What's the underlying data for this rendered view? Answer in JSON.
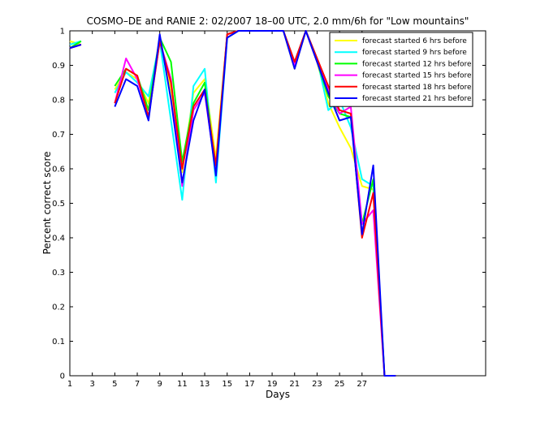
{
  "chart_data": {
    "type": "line",
    "title": "COSMO–DE and RANIE 2: 02/2007 18–00 UTC, 2.0 mm/6h for \"Low mountains\"",
    "xlabel": "Days",
    "ylabel": "Percent correct score",
    "xlim": [
      1,
      38
    ],
    "ylim": [
      0,
      1
    ],
    "xticks": [
      "1",
      "3",
      "5",
      "7",
      "9",
      "11",
      "13",
      "15",
      "17",
      "19",
      "21",
      "23",
      "25",
      "27"
    ],
    "yticks": [
      "0",
      "0.1",
      "0.2",
      "0.3",
      "0.4",
      "0.5",
      "0.6",
      "0.7",
      "0.8",
      "0.9",
      "1"
    ],
    "grid": false,
    "legend_position": "top-right",
    "colors": {
      "forecast started 6 hrs before": "#ffff00",
      "forecast started 9 hrs before": "#00ffff",
      "forecast started 12 hrs before": "#00ff00",
      "forecast started 15 hrs before": "#ff00ff",
      "forecast started 18 hrs before": "#ff0000",
      "forecast started 21 hrs before": "#0000ff"
    },
    "series": [
      {
        "name": "forecast started 6 hrs before",
        "color": "#ffff00",
        "points": [
          [
            1,
            0.97
          ],
          [
            2,
            0.96
          ],
          [
            5,
            0.83
          ],
          [
            6,
            0.88
          ],
          [
            7,
            0.86
          ],
          [
            8,
            0.79
          ],
          [
            9,
            0.98
          ],
          [
            10,
            0.83
          ],
          [
            11,
            0.59
          ],
          [
            12,
            0.82
          ],
          [
            13,
            0.86
          ],
          [
            14,
            0.63
          ],
          [
            15,
            0.99
          ],
          [
            16,
            1.0
          ],
          [
            17,
            1.0
          ],
          [
            18,
            1.0
          ],
          [
            19,
            1.0
          ],
          [
            20,
            1.0
          ],
          [
            21,
            0.89
          ],
          [
            22,
            1.0
          ],
          [
            23,
            0.91
          ],
          [
            24,
            0.79
          ],
          [
            25,
            0.72
          ],
          [
            26,
            0.66
          ],
          [
            27,
            0.55
          ],
          [
            28,
            0.54
          ],
          [
            29,
            0.0
          ],
          [
            30,
            0.0
          ]
        ]
      },
      {
        "name": "forecast started 9 hrs before",
        "color": "#00ffff",
        "points": [
          [
            1,
            0.96
          ],
          [
            2,
            0.97
          ],
          [
            5,
            0.82
          ],
          [
            6,
            0.88
          ],
          [
            7,
            0.85
          ],
          [
            8,
            0.81
          ],
          [
            9,
            0.97
          ],
          [
            10,
            0.74
          ],
          [
            11,
            0.51
          ],
          [
            12,
            0.84
          ],
          [
            13,
            0.89
          ],
          [
            14,
            0.56
          ],
          [
            15,
            0.98
          ],
          [
            16,
            1.0
          ],
          [
            17,
            1.0
          ],
          [
            18,
            1.0
          ],
          [
            19,
            1.0
          ],
          [
            20,
            1.0
          ],
          [
            21,
            0.91
          ],
          [
            22,
            1.0
          ],
          [
            23,
            0.92
          ],
          [
            24,
            0.77
          ],
          [
            25,
            0.8
          ],
          [
            26,
            0.72
          ],
          [
            27,
            0.57
          ],
          [
            28,
            0.55
          ],
          [
            29,
            0.0
          ],
          [
            30,
            0.0
          ]
        ]
      },
      {
        "name": "forecast started 12 hrs before",
        "color": "#00ff00",
        "points": [
          [
            1,
            0.95
          ],
          [
            2,
            0.97
          ],
          [
            5,
            0.84
          ],
          [
            6,
            0.89
          ],
          [
            7,
            0.87
          ],
          [
            8,
            0.77
          ],
          [
            9,
            0.98
          ],
          [
            10,
            0.91
          ],
          [
            11,
            0.62
          ],
          [
            12,
            0.79
          ],
          [
            13,
            0.85
          ],
          [
            14,
            0.6
          ],
          [
            15,
            0.99
          ],
          [
            16,
            1.0
          ],
          [
            17,
            1.0
          ],
          [
            18,
            1.0
          ],
          [
            19,
            1.0
          ],
          [
            20,
            1.0
          ],
          [
            21,
            0.9
          ],
          [
            22,
            1.0
          ],
          [
            23,
            0.91
          ],
          [
            24,
            0.81
          ],
          [
            25,
            0.76
          ],
          [
            26,
            0.75
          ],
          [
            27,
            0.44
          ],
          [
            28,
            0.57
          ],
          [
            29,
            0.0
          ],
          [
            30,
            0.0
          ]
        ]
      },
      {
        "name": "forecast started 15 hrs before",
        "color": "#ff00ff",
        "points": [
          [
            1,
            0.95
          ],
          [
            2,
            0.96
          ],
          [
            5,
            0.79
          ],
          [
            6,
            0.92
          ],
          [
            7,
            0.86
          ],
          [
            8,
            0.75
          ],
          [
            9,
            0.97
          ],
          [
            10,
            0.86
          ],
          [
            11,
            0.55
          ],
          [
            12,
            0.77
          ],
          [
            13,
            0.82
          ],
          [
            14,
            0.59
          ],
          [
            15,
            0.99
          ],
          [
            16,
            1.0
          ],
          [
            17,
            1.0
          ],
          [
            18,
            1.0
          ],
          [
            19,
            1.0
          ],
          [
            20,
            1.0
          ],
          [
            21,
            0.9
          ],
          [
            22,
            1.0
          ],
          [
            23,
            0.91
          ],
          [
            24,
            0.83
          ],
          [
            25,
            0.76
          ],
          [
            26,
            0.78
          ],
          [
            27,
            0.44
          ],
          [
            28,
            0.48
          ],
          [
            29,
            0.0
          ],
          [
            30,
            0.0
          ]
        ]
      },
      {
        "name": "forecast started 18 hrs before",
        "color": "#ff0000",
        "points": [
          [
            1,
            0.95
          ],
          [
            2,
            0.96
          ],
          [
            5,
            0.79
          ],
          [
            6,
            0.89
          ],
          [
            7,
            0.87
          ],
          [
            8,
            0.75
          ],
          [
            9,
            0.97
          ],
          [
            10,
            0.85
          ],
          [
            11,
            0.6
          ],
          [
            12,
            0.78
          ],
          [
            13,
            0.83
          ],
          [
            14,
            0.61
          ],
          [
            15,
            0.99
          ],
          [
            16,
            1.0
          ],
          [
            17,
            1.0
          ],
          [
            18,
            1.0
          ],
          [
            19,
            1.0
          ],
          [
            20,
            1.0
          ],
          [
            21,
            0.91
          ],
          [
            22,
            1.0
          ],
          [
            23,
            0.92
          ],
          [
            24,
            0.84
          ],
          [
            25,
            0.77
          ],
          [
            26,
            0.76
          ],
          [
            27,
            0.4
          ],
          [
            28,
            0.53
          ],
          [
            29,
            0.0
          ],
          [
            30,
            0.0
          ]
        ]
      },
      {
        "name": "forecast started 21 hrs before",
        "color": "#0000ff",
        "points": [
          [
            1,
            0.95
          ],
          [
            2,
            0.96
          ],
          [
            5,
            0.78
          ],
          [
            6,
            0.86
          ],
          [
            7,
            0.84
          ],
          [
            8,
            0.74
          ],
          [
            9,
            0.99
          ],
          [
            10,
            0.8
          ],
          [
            11,
            0.56
          ],
          [
            12,
            0.74
          ],
          [
            13,
            0.83
          ],
          [
            14,
            0.58
          ],
          [
            15,
            0.98
          ],
          [
            16,
            1.0
          ],
          [
            17,
            1.0
          ],
          [
            18,
            1.0
          ],
          [
            19,
            1.0
          ],
          [
            20,
            1.0
          ],
          [
            21,
            0.89
          ],
          [
            22,
            1.0
          ],
          [
            23,
            0.91
          ],
          [
            24,
            0.82
          ],
          [
            25,
            0.74
          ],
          [
            26,
            0.75
          ],
          [
            27,
            0.41
          ],
          [
            28,
            0.61
          ],
          [
            29,
            0.0
          ],
          [
            30,
            0.0
          ]
        ]
      }
    ]
  }
}
